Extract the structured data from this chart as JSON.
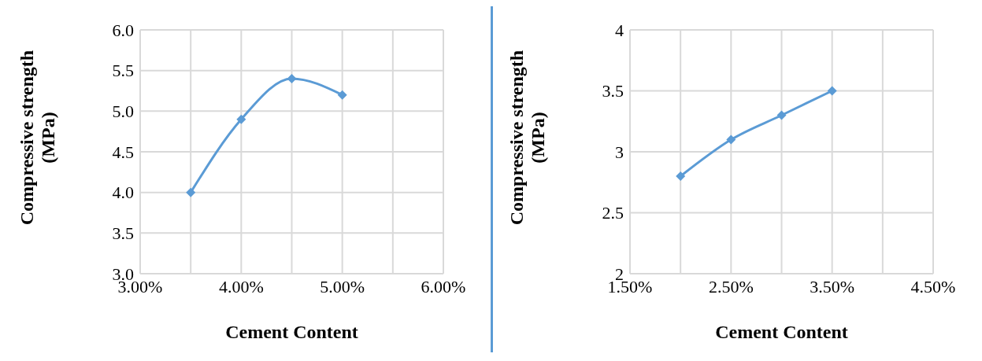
{
  "chart_data": [
    {
      "type": "line",
      "xlabel": "Cement Content",
      "ylabel": "Compressive strength (MPa)",
      "x": [
        3.5,
        4.0,
        4.5,
        5.0
      ],
      "series": [
        {
          "color": "#5b9bd5",
          "values": [
            4.0,
            4.9,
            5.4,
            5.2
          ]
        }
      ],
      "xlim": [
        3,
        6
      ],
      "xticks": [
        {
          "value": 3,
          "label": "3.00%"
        },
        {
          "value": 3.5,
          "label": null
        },
        {
          "value": 4,
          "label": "4.00%"
        },
        {
          "value": 4.5,
          "label": null
        },
        {
          "value": 5,
          "label": "5.00%"
        },
        {
          "value": 5.5,
          "label": null
        },
        {
          "value": 6,
          "label": "6.00%"
        }
      ],
      "ylim": [
        3,
        6
      ],
      "yticks": [
        {
          "value": 3,
          "label": "3.0"
        },
        3.5,
        {
          "value": 4,
          "label": "4.0"
        },
        4.5,
        {
          "value": 5,
          "label": "5.0"
        },
        5.5,
        {
          "value": 6,
          "label": "6.0"
        }
      ],
      "grid": true,
      "marker": "diamond",
      "line_style": "solid"
    },
    {
      "type": "line",
      "xlabel": "Cement Content",
      "ylabel": "Compressive strength (MPa)",
      "x": [
        2.0,
        2.5,
        3.0,
        3.5
      ],
      "series": [
        {
          "color": "#5b9bd5",
          "values": [
            2.8,
            3.1,
            3.3,
            3.5
          ]
        }
      ],
      "xlim": [
        1.5,
        4.5
      ],
      "xticks": [
        {
          "value": 1.5,
          "label": "1.50%"
        },
        {
          "value": 2,
          "label": null
        },
        {
          "value": 2.5,
          "label": "2.50%"
        },
        {
          "value": 3,
          "label": null
        },
        {
          "value": 3.5,
          "label": "3.50%"
        },
        {
          "value": 4,
          "label": null
        },
        {
          "value": 4.5,
          "label": "4.50%"
        }
      ],
      "ylim": [
        2,
        4
      ],
      "yticks": [
        2,
        2.5,
        3,
        3.5,
        4
      ],
      "grid": true,
      "marker": "diamond",
      "line_style": "solid"
    }
  ]
}
